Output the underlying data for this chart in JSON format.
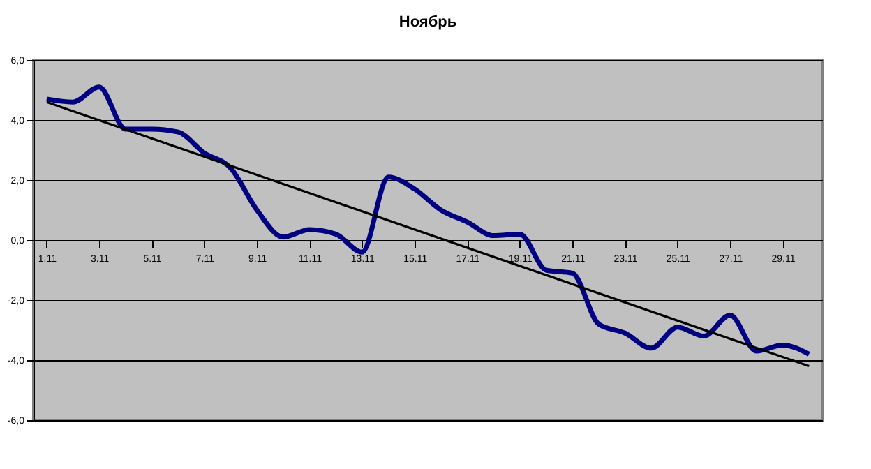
{
  "chart_data": {
    "type": "line",
    "title": "Ноябрь",
    "categories": [
      "1.11",
      null,
      "3.11",
      null,
      "5.11",
      null,
      "7.11",
      null,
      "9.11",
      null,
      "11.11",
      null,
      "13.11",
      null,
      "15.11",
      null,
      "17.11",
      null,
      "19.11",
      null,
      "21.11",
      null,
      "23.11",
      null,
      "25.11",
      null,
      "27.11",
      null,
      "29.11",
      null
    ],
    "series": [
      {
        "color": "#000080",
        "values": [
          4.7,
          4.6,
          5.1,
          3.7,
          3.7,
          3.6,
          2.9,
          2.4,
          1.0,
          0.1,
          0.35,
          0.2,
          -0.4,
          2.1,
          1.7,
          1.0,
          0.6,
          0.15,
          0.2,
          -1.0,
          -1.1,
          -2.8,
          -3.1,
          -3.6,
          -2.9,
          -3.2,
          -2.5,
          -3.7,
          -3.5,
          -3.8
        ]
      },
      {
        "type": "line",
        "color": "#000000",
        "values": [
          4.6,
          null,
          null,
          null,
          null,
          null,
          null,
          null,
          null,
          null,
          null,
          null,
          null,
          null,
          null,
          null,
          null,
          null,
          null,
          null,
          null,
          null,
          null,
          null,
          null,
          null,
          null,
          null,
          null,
          -4.2
        ]
      }
    ],
    "ylim": [
      -6,
      6
    ],
    "yticks": [
      {
        "value": -6,
        "label": "-6,0"
      },
      {
        "value": -4,
        "label": "-4,0"
      },
      {
        "value": -2,
        "label": "-2,0"
      },
      {
        "value": 0,
        "label": "0,0"
      },
      {
        "value": 2,
        "label": "2,0"
      },
      {
        "value": 4,
        "label": "4,0"
      },
      {
        "value": 6,
        "label": "6,0"
      }
    ],
    "grid": "y"
  }
}
